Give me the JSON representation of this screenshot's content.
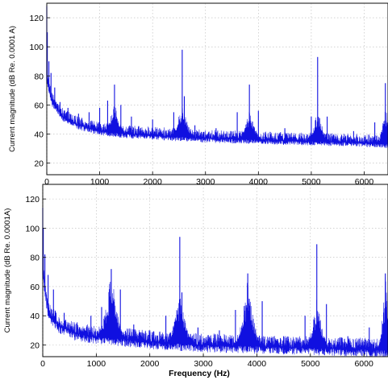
{
  "chart_data": [
    {
      "type": "line",
      "title": "",
      "xlabel": "",
      "ylabel": "Current magnitude (dB Re. 0.0001 A)",
      "xlim": [
        0,
        6450
      ],
      "ylim": [
        12,
        130
      ],
      "xticks": [
        0,
        1000,
        2000,
        3000,
        4000,
        5000,
        6000
      ],
      "xtick_labels": [
        "0",
        "1000",
        "2000",
        "3000",
        "4000",
        "5000",
        "6000"
      ],
      "yticks": [
        20,
        40,
        60,
        80,
        100,
        120
      ],
      "ytick_labels": [
        "20",
        "40",
        "60",
        "80",
        "100",
        "120"
      ],
      "grid": true,
      "color": "#1010e0",
      "floor": [
        [
          0,
          78
        ],
        [
          100,
          62
        ],
        [
          300,
          52
        ],
        [
          600,
          46
        ],
        [
          1000,
          42
        ],
        [
          1500,
          40
        ],
        [
          2000,
          39
        ],
        [
          2500,
          38
        ],
        [
          3000,
          37
        ],
        [
          4000,
          36
        ],
        [
          5000,
          35
        ],
        [
          6000,
          34
        ],
        [
          6450,
          33
        ]
      ],
      "harmonic_humps": [
        {
          "center": 1280,
          "top": 62,
          "width": 260
        },
        {
          "center": 2560,
          "top": 62,
          "width": 280
        },
        {
          "center": 3830,
          "top": 58,
          "width": 270
        },
        {
          "center": 5120,
          "top": 58,
          "width": 260
        },
        {
          "center": 6400,
          "top": 62,
          "width": 180
        }
      ],
      "series": [
        {
          "x": [
            0,
            10,
            40,
            80,
            150,
            250,
            400,
            600,
            800,
            1000,
            1150,
            1280,
            1400,
            1600,
            2000,
            2400,
            2560,
            2600,
            2800,
            3200,
            3600,
            3830,
            4000,
            4500,
            5000,
            5120,
            5300,
            5800,
            6200,
            6400,
            6450
          ],
          "y": [
            128,
            110,
            90,
            82,
            72,
            62,
            58,
            54,
            55,
            58,
            63,
            74,
            60,
            52,
            50,
            55,
            98,
            66,
            46,
            44,
            55,
            74,
            56,
            44,
            52,
            93,
            52,
            42,
            48,
            75,
            38
          ]
        }
      ]
    },
    {
      "type": "line",
      "title": "",
      "xlabel": "Frequency (Hz)",
      "ylabel": "Current magnitude (dB Re. 0.0001A)",
      "xlim": [
        0,
        6450
      ],
      "ylim": [
        12,
        130
      ],
      "xticks": [
        0,
        1000,
        2000,
        3000,
        4000,
        5000,
        6000
      ],
      "xtick_labels": [
        "0",
        "1000",
        "2000",
        "3000",
        "4000",
        "5000",
        "6000"
      ],
      "yticks": [
        20,
        40,
        60,
        80,
        100,
        120
      ],
      "ytick_labels": [
        "20",
        "40",
        "60",
        "80",
        "100",
        "120"
      ],
      "grid": true,
      "color": "#1010e0",
      "floor": [
        [
          0,
          70
        ],
        [
          100,
          42
        ],
        [
          300,
          33
        ],
        [
          600,
          28
        ],
        [
          900,
          26
        ],
        [
          1500,
          24
        ],
        [
          2000,
          22
        ],
        [
          3000,
          20
        ],
        [
          4000,
          19
        ],
        [
          5000,
          18
        ],
        [
          6000,
          17
        ],
        [
          6450,
          16
        ]
      ],
      "harmonic_humps": [
        {
          "center": 1280,
          "top": 72,
          "width": 300
        },
        {
          "center": 2560,
          "top": 58,
          "width": 300
        },
        {
          "center": 3830,
          "top": 68,
          "width": 300
        },
        {
          "center": 5120,
          "top": 52,
          "width": 280
        },
        {
          "center": 6400,
          "top": 68,
          "width": 180
        }
      ],
      "series": [
        {
          "x": [
            0,
            10,
            40,
            100,
            200,
            400,
            600,
            900,
            1100,
            1280,
            1450,
            1700,
            2000,
            2300,
            2560,
            2600,
            2900,
            3300,
            3600,
            3830,
            4100,
            4500,
            4900,
            5120,
            5300,
            5700,
            6100,
            6400,
            6450
          ],
          "y": [
            114,
            100,
            82,
            68,
            58,
            42,
            34,
            40,
            46,
            72,
            58,
            34,
            30,
            40,
            94,
            56,
            32,
            30,
            44,
            69,
            50,
            26,
            40,
            89,
            48,
            26,
            32,
            69,
            28
          ]
        }
      ]
    }
  ]
}
